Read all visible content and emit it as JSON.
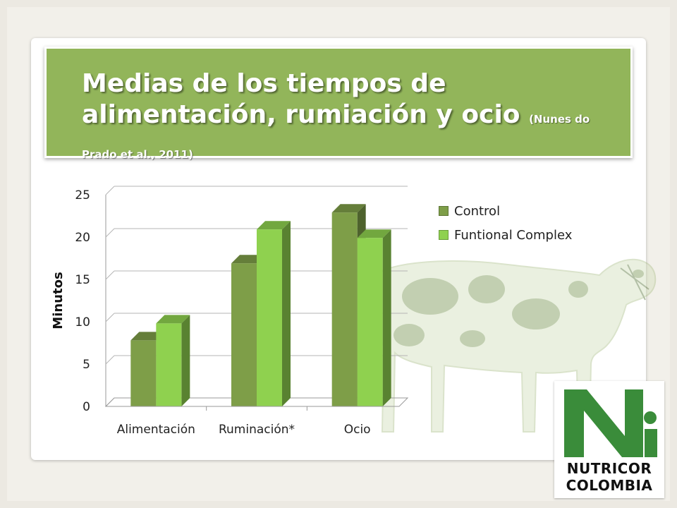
{
  "slide": {
    "title": "Medias de los tiempos de alimentación, rumiación y ocio",
    "citation": "(Nunes do Prado et al., 2011)"
  },
  "logo": {
    "line1": "NUTRICOR",
    "line2": "COLOMBIA"
  },
  "colors": {
    "title_band": "#92b55a",
    "control": "#7e9e48",
    "functional": "#8fd14f",
    "logo_green": "#3a8c3a"
  },
  "chart_data": {
    "type": "bar",
    "categories": [
      "Alimentación",
      "Ruminación*",
      "Ocio"
    ],
    "series": [
      {
        "name": "Control",
        "values": [
          7.8,
          16.9,
          22.9
        ]
      },
      {
        "name": "Funtional Complex",
        "values": [
          9.8,
          20.9,
          19.9
        ]
      }
    ],
    "ylabel": "Minutos",
    "xlabel": "",
    "ylim": [
      0,
      25
    ],
    "yticks": [
      0,
      5,
      10,
      15,
      20,
      25
    ],
    "grid": true,
    "legend": "top-right"
  }
}
